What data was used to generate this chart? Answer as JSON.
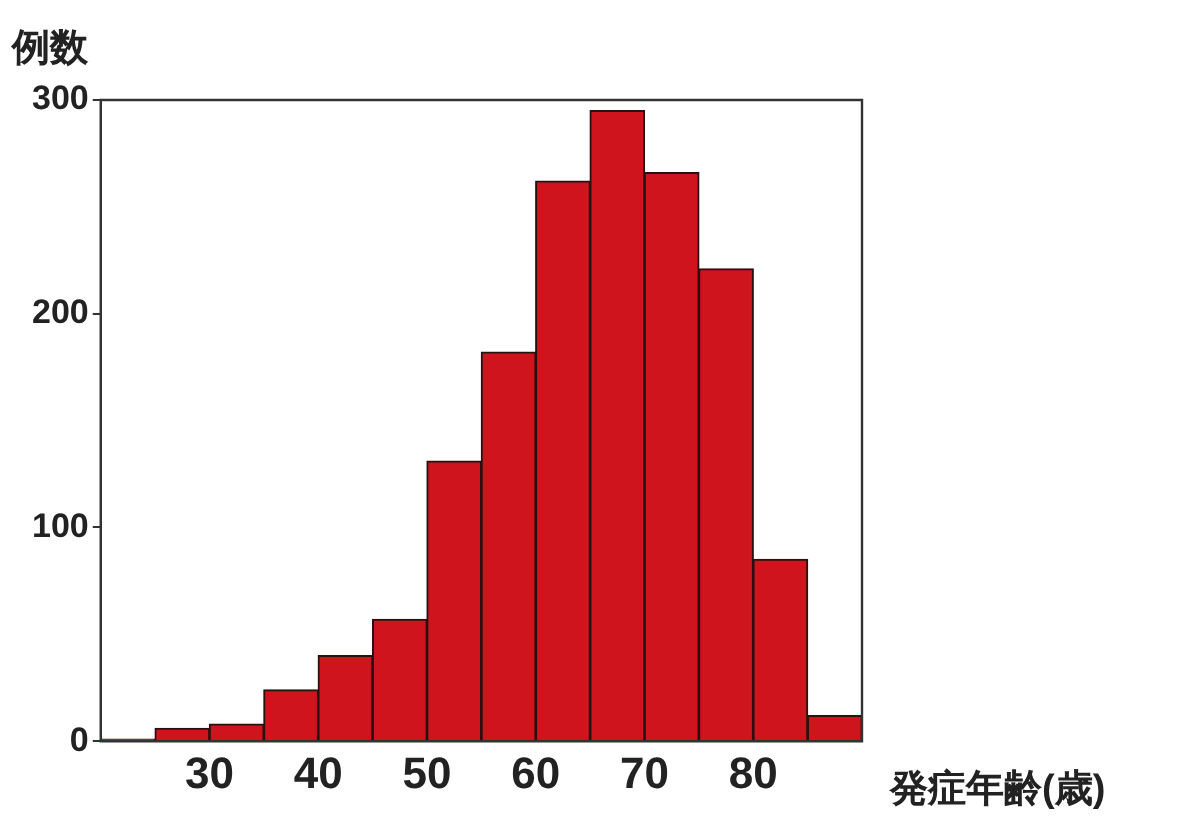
{
  "chart_data": {
    "type": "histogram",
    "ylabel": "例数",
    "xlabel": "発症年齢(歳)",
    "bins": [
      20,
      25,
      30,
      35,
      40,
      45,
      50,
      55,
      60,
      65,
      70,
      75,
      80,
      85,
      90
    ],
    "values": [
      1,
      6,
      8,
      24,
      40,
      57,
      131,
      182,
      262,
      295,
      266,
      221,
      85,
      12
    ],
    "color": "#d0141e",
    "xlim": [
      20,
      90
    ],
    "xticks": [
      30,
      40,
      50,
      60,
      70,
      80
    ],
    "ylim": [
      0,
      300
    ],
    "yticks": [
      0,
      100,
      200,
      300
    ],
    "grid": false,
    "legend": false
  }
}
